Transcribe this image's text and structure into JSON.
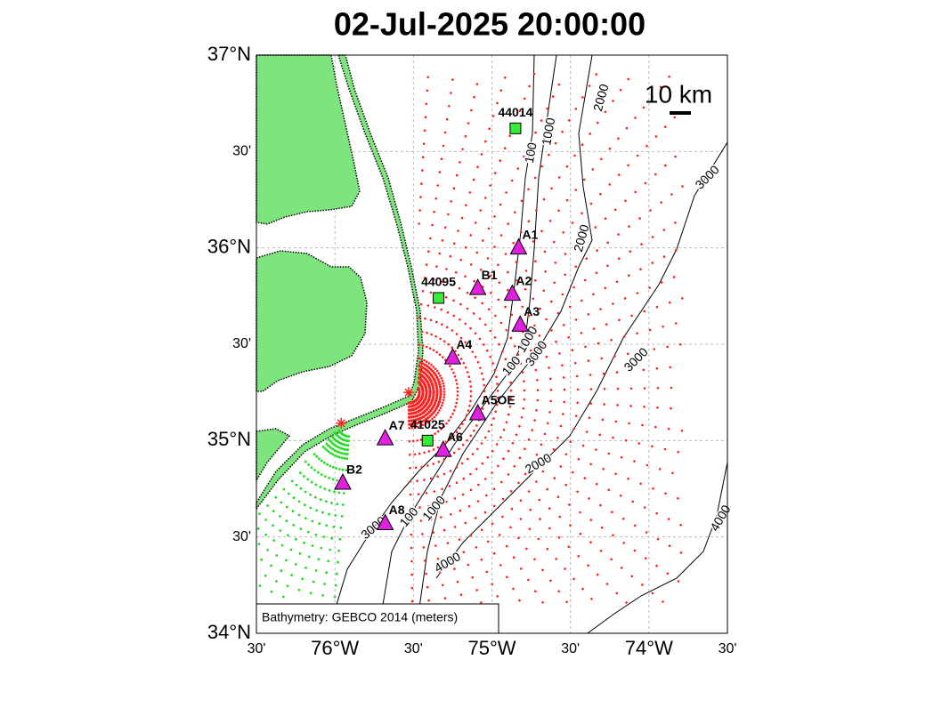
{
  "title": "02-Jul-2025 20:00:00",
  "scale_bar_label": "10 km",
  "attribution": "Bathymetry: GEBCO 2014 (meters)",
  "map": {
    "lonlim": [
      -76.5,
      -73.5
    ],
    "latlim": [
      34,
      37
    ],
    "grid": true,
    "lon_ticks": [
      {
        "value": -76.5,
        "label": "30'"
      },
      {
        "value": -76,
        "label": "76°W"
      },
      {
        "value": -75.5,
        "label": "30'"
      },
      {
        "value": -75,
        "label": "75°W"
      },
      {
        "value": -74.5,
        "label": "30'"
      },
      {
        "value": -74,
        "label": "74°W"
      },
      {
        "value": -73.5,
        "label": "30'"
      }
    ],
    "lat_ticks": [
      {
        "value": 37,
        "label": "37°N"
      },
      {
        "value": 36.5,
        "label": "30'"
      },
      {
        "value": 36,
        "label": "36°N"
      },
      {
        "value": 35.5,
        "label": "30'"
      },
      {
        "value": 35,
        "label": "35°N"
      },
      {
        "value": 34.5,
        "label": "30'"
      },
      {
        "value": 34,
        "label": "34°N"
      }
    ]
  },
  "stations": [
    {
      "label": "44014",
      "kind": "buoy",
      "lon": -74.85,
      "lat": 36.62
    },
    {
      "label": "A1",
      "kind": "array",
      "lon": -74.83,
      "lat": 36.0
    },
    {
      "label": "44095",
      "kind": "buoy",
      "lon": -75.34,
      "lat": 35.74
    },
    {
      "label": "B1",
      "kind": "array",
      "lon": -75.09,
      "lat": 35.79
    },
    {
      "label": "A2",
      "kind": "array",
      "lon": -74.87,
      "lat": 35.76
    },
    {
      "label": "A3",
      "kind": "array",
      "lon": -74.82,
      "lat": 35.6
    },
    {
      "label": "A4",
      "kind": "array",
      "lon": -75.25,
      "lat": 35.43
    },
    {
      "label": "A5OE",
      "kind": "array",
      "lon": -75.09,
      "lat": 35.14
    },
    {
      "label": "41025",
      "kind": "buoy",
      "lon": -75.41,
      "lat": 35.0
    },
    {
      "label": "A7",
      "kind": "array",
      "lon": -75.68,
      "lat": 35.01
    },
    {
      "label": "A6",
      "kind": "array",
      "lon": -75.31,
      "lat": 34.95
    },
    {
      "label": "B2",
      "kind": "array",
      "lon": -75.95,
      "lat": 34.78
    },
    {
      "label": "A8",
      "kind": "array",
      "lon": -75.68,
      "lat": 34.57
    }
  ],
  "sources": [
    {
      "lon": -75.53,
      "lat": 35.25
    },
    {
      "lon": -75.96,
      "lat": 35.09
    }
  ],
  "contour_labels": [
    "2000",
    "1000",
    "100",
    "3000",
    "2000",
    "1000",
    "100",
    "3000",
    "3000",
    "2000",
    "1000",
    "100",
    "3000",
    "4000",
    "4000"
  ]
}
